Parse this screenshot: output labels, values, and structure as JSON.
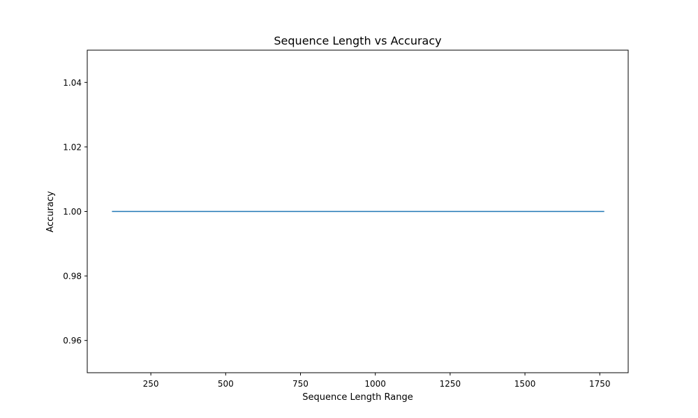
{
  "chart_data": {
    "type": "line",
    "title": "Sequence Length vs Accuracy",
    "xlabel": "Sequence Length Range",
    "ylabel": "Accuracy",
    "xlim": [
      37.5,
      1845
    ],
    "ylim": [
      0.95,
      1.05
    ],
    "xticks": [
      250,
      500,
      750,
      1000,
      1250,
      1500,
      1750
    ],
    "yticks": [
      0.96,
      0.98,
      1.0,
      1.02,
      1.04
    ],
    "ytick_format": 2,
    "grid": false,
    "series": [
      {
        "x": [
          120,
          1765
        ],
        "y": [
          1.0,
          1.0
        ],
        "color": "#1f77b4"
      }
    ]
  }
}
